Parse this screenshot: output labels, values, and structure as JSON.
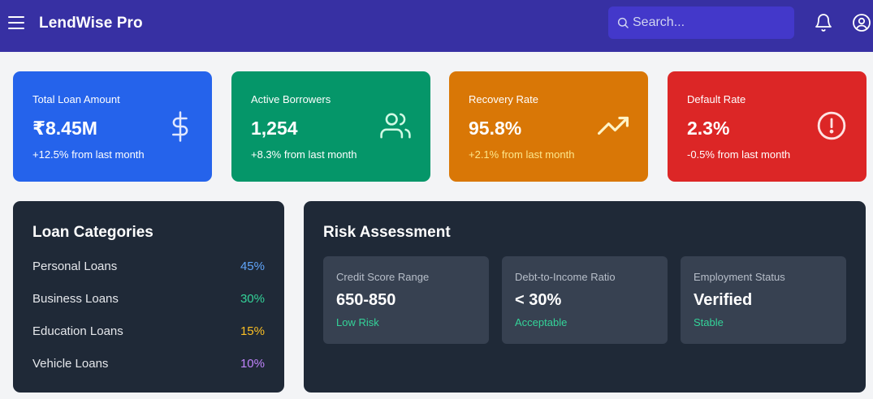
{
  "header": {
    "menu_icon": "hamburger-menu-icon",
    "app_title": "LendWise Pro",
    "search_placeholder": "Search...",
    "notification_icon": "bell-icon",
    "profile_icon": "user-circle-icon"
  },
  "stats": [
    {
      "label": "Total Loan Amount",
      "value": "₹8.45M",
      "change": "+12.5% from last month",
      "icon": "dollar-icon",
      "color": "#2563eb"
    },
    {
      "label": "Active Borrowers",
      "value": "1,254",
      "change": "+8.3% from last month",
      "icon": "users-icon",
      "color": "#059669"
    },
    {
      "label": "Recovery Rate",
      "value": "95.8%",
      "change": "+2.1% from last month",
      "icon": "trending-up-icon",
      "color": "#d97706"
    },
    {
      "label": "Default Rate",
      "value": "2.3%",
      "change": "-0.5% from last month",
      "icon": "alert-circle-icon",
      "color": "#dc2626"
    }
  ],
  "loan_categories": {
    "title": "Loan Categories",
    "items": [
      {
        "name": "Personal Loans",
        "percent": "45%",
        "color": "#60a5fa"
      },
      {
        "name": "Business Loans",
        "percent": "30%",
        "color": "#34d399"
      },
      {
        "name": "Education Loans",
        "percent": "15%",
        "color": "#fbbf24"
      },
      {
        "name": "Vehicle Loans",
        "percent": "10%",
        "color": "#c084fc"
      }
    ]
  },
  "risk_assessment": {
    "title": "Risk Assessment",
    "cards": [
      {
        "label": "Credit Score Range",
        "value": "650-850",
        "status": "Low Risk"
      },
      {
        "label": "Debt-to-Income Ratio",
        "value": "< 30%",
        "status": "Acceptable"
      },
      {
        "label": "Employment Status",
        "value": "Verified",
        "status": "Stable"
      }
    ]
  }
}
